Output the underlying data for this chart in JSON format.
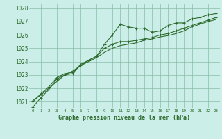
{
  "title": "Graphe pression niveau de la mer (hPa)",
  "bg_color": "#cceee8",
  "grid_color": "#88bba8",
  "line_color": "#2d6b2d",
  "x_hours": [
    0,
    1,
    2,
    3,
    4,
    5,
    6,
    7,
    8,
    9,
    10,
    11,
    12,
    13,
    14,
    15,
    16,
    17,
    18,
    19,
    20,
    21,
    22,
    23
  ],
  "series1": [
    1020.6,
    1021.3,
    1021.9,
    1022.7,
    1023.0,
    1023.1,
    1023.8,
    1024.1,
    1024.4,
    1025.3,
    1026.0,
    1026.8,
    1026.6,
    1026.5,
    1026.5,
    1026.2,
    1026.3,
    1026.7,
    1026.9,
    1026.9,
    1027.2,
    1027.3,
    1027.5,
    1027.6
  ],
  "series2": [
    1021.0,
    1021.6,
    1022.1,
    1022.8,
    1023.1,
    1023.2,
    1023.7,
    1024.1,
    1024.4,
    1025.0,
    1025.3,
    1025.5,
    1025.5,
    1025.6,
    1025.7,
    1025.8,
    1026.0,
    1026.1,
    1026.3,
    1026.5,
    1026.7,
    1026.9,
    1027.1,
    1027.3
  ],
  "series3_smooth": [
    1021.1,
    1021.5,
    1022.0,
    1022.5,
    1023.0,
    1023.3,
    1023.7,
    1024.0,
    1024.3,
    1024.7,
    1025.0,
    1025.2,
    1025.3,
    1025.4,
    1025.6,
    1025.7,
    1025.85,
    1025.95,
    1026.1,
    1026.3,
    1026.6,
    1026.8,
    1027.0,
    1027.15
  ],
  "ylim": [
    1020.5,
    1028.3
  ],
  "yticks": [
    1021,
    1022,
    1023,
    1024,
    1025,
    1026,
    1027,
    1028
  ],
  "xlim": [
    -0.5,
    23.5
  ],
  "xlabel_fontsize": 6.0,
  "ytick_fontsize": 5.5,
  "xtick_fontsize": 4.2
}
